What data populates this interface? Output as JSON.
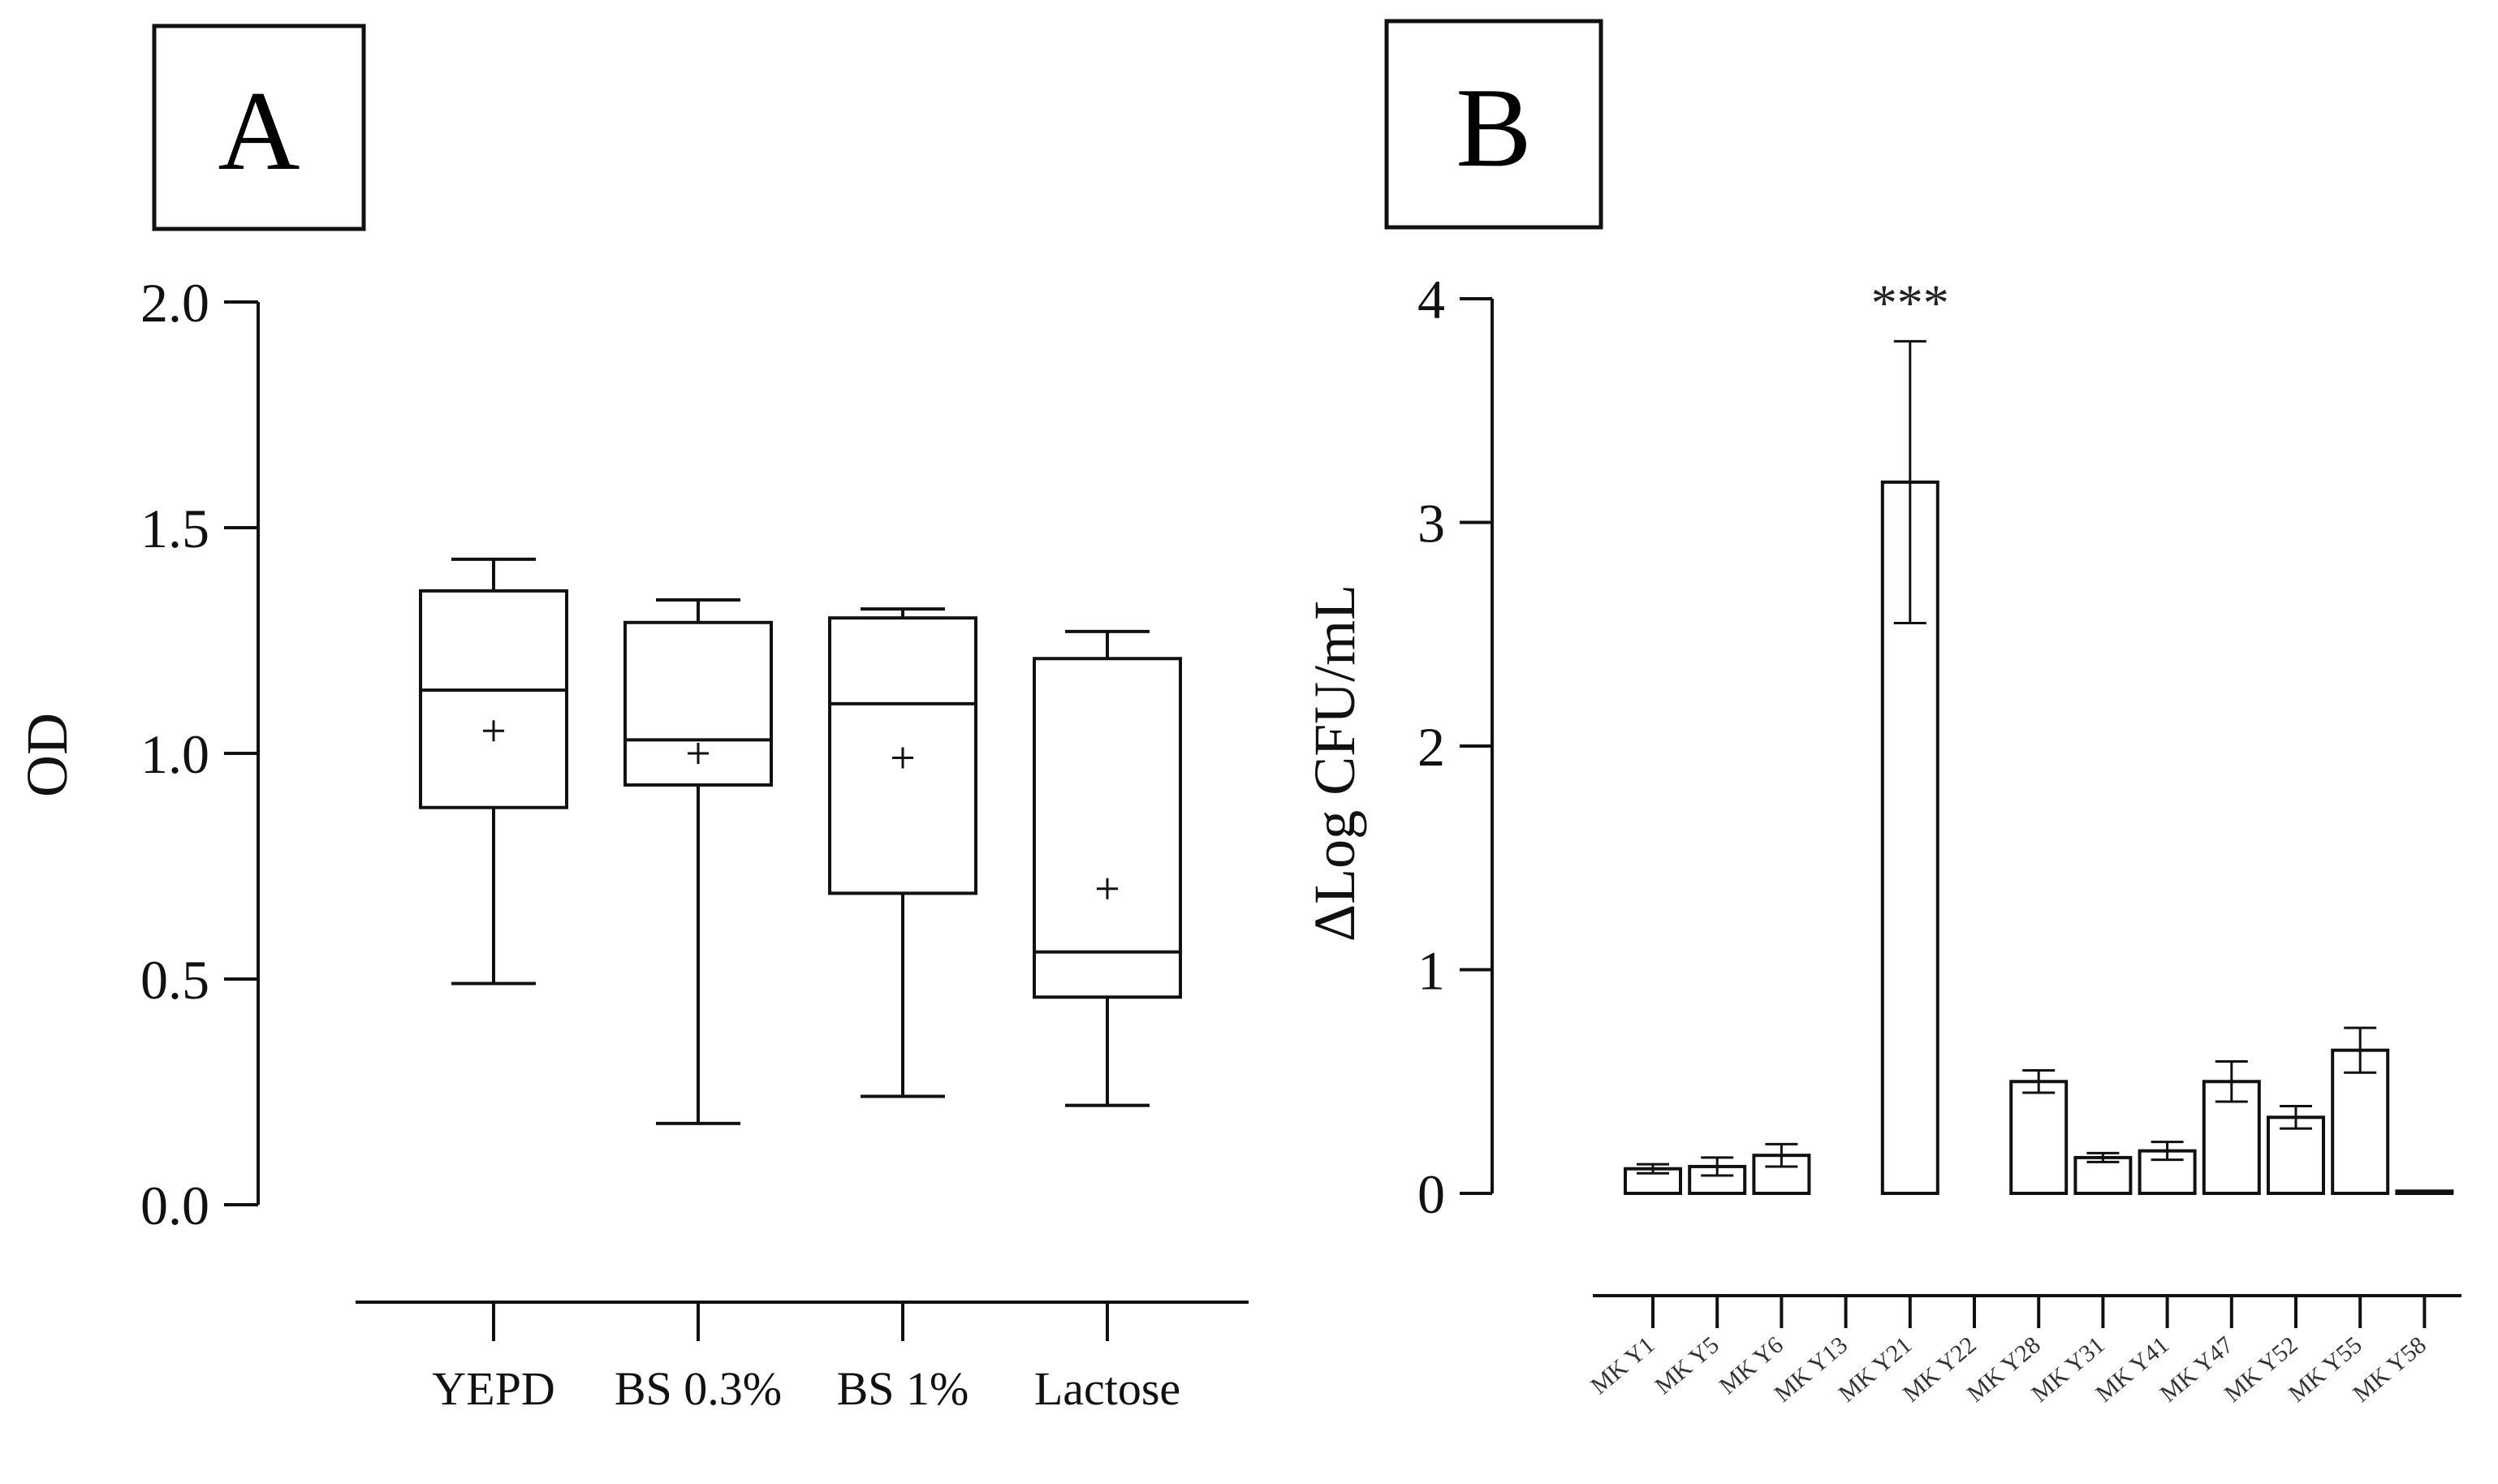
{
  "chart_data": [
    {
      "panel": "A",
      "type": "box",
      "ylabel": "OD",
      "ylim": [
        0,
        2.0
      ],
      "yticks": [
        "0.0",
        "0.5",
        "1.0",
        "1.5",
        "2.0"
      ],
      "categories": [
        "YEPD",
        "BS 0.3%",
        "BS 1%",
        "Lactose"
      ],
      "boxes": [
        {
          "min": 0.49,
          "q1": 0.88,
          "median": 1.14,
          "q3": 1.36,
          "max": 1.43,
          "mean": 1.05
        },
        {
          "min": 0.18,
          "q1": 0.93,
          "median": 1.03,
          "q3": 1.29,
          "max": 1.34,
          "mean": 1.0
        },
        {
          "min": 0.24,
          "q1": 0.69,
          "median": 1.11,
          "q3": 1.3,
          "max": 1.32,
          "mean": 0.99
        },
        {
          "min": 0.22,
          "q1": 0.46,
          "median": 0.56,
          "q3": 1.21,
          "max": 1.27,
          "mean": 0.7
        }
      ]
    },
    {
      "panel": "B",
      "type": "bar",
      "ylabel": "ΔLog CFU/mL",
      "ylim": [
        0,
        4
      ],
      "yticks": [
        "0",
        "1",
        "2",
        "3",
        "4"
      ],
      "categories": [
        "MK Y1",
        "MK Y5",
        "MK Y6",
        "MK Y13",
        "MK Y21",
        "MK Y22",
        "MK Y28",
        "MK Y31",
        "MK Y41",
        "MK Y47",
        "MK Y52",
        "MK Y55",
        "MK Y58"
      ],
      "values": [
        0.11,
        0.12,
        0.17,
        null,
        3.18,
        null,
        0.5,
        0.16,
        0.19,
        0.5,
        0.34,
        0.64,
        0.01
      ],
      "errors": [
        0.02,
        0.04,
        0.05,
        null,
        0.63,
        null,
        0.05,
        0.02,
        0.04,
        0.09,
        0.05,
        0.1,
        0.0
      ],
      "annotation": {
        "category": "MK Y21",
        "text": "***"
      }
    }
  ]
}
